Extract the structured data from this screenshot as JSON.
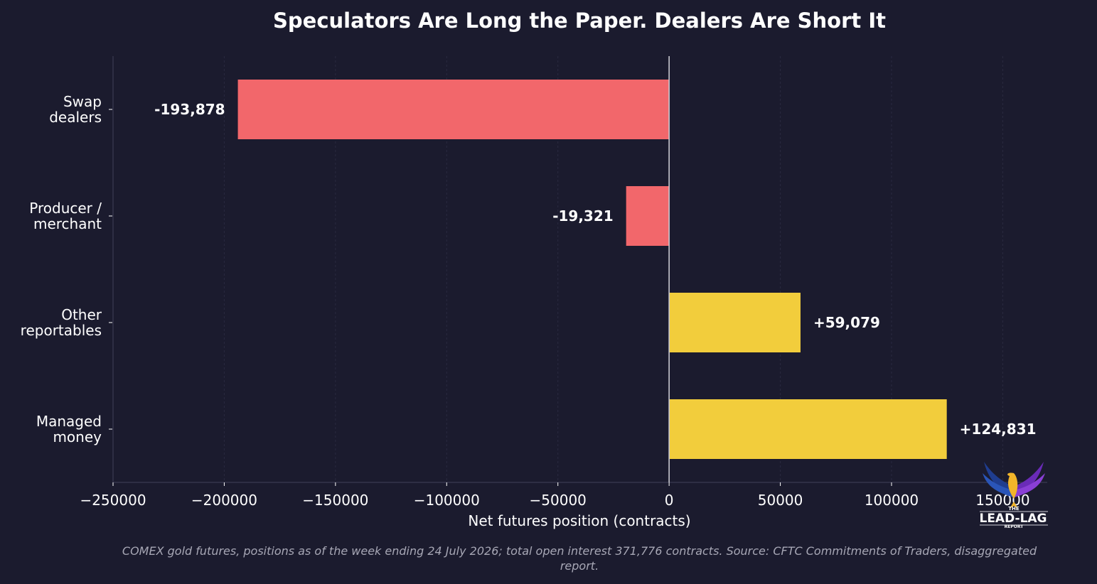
{
  "chart_data": {
    "type": "bar",
    "orientation": "horizontal",
    "title": "Speculators Are Long the Paper. Dealers Are Short It",
    "xlabel": "Net futures position (contracts)",
    "ylabel": "",
    "xlim": [
      -250000,
      170000
    ],
    "xticks": [
      -250000,
      -200000,
      -150000,
      -100000,
      -50000,
      0,
      50000,
      100000,
      150000
    ],
    "xtick_labels": [
      "−250000",
      "−200000",
      "−150000",
      "−100000",
      "−50000",
      "0",
      "50000",
      "100000",
      "150000"
    ],
    "categories": [
      [
        "Swap",
        "dealers"
      ],
      [
        "Producer /",
        "merchant"
      ],
      [
        "Other",
        "reportables"
      ],
      [
        "Managed",
        "money"
      ]
    ],
    "values": [
      -193878,
      -19321,
      59079,
      124831
    ],
    "value_labels": [
      "-193,878",
      "-19,321",
      "+59,079",
      "+124,831"
    ],
    "grid": true,
    "colors": {
      "negative": "#f2676b",
      "positive": "#f2cd3c",
      "background": "#1b1b2e"
    }
  },
  "caption": {
    "line1": "COMEX gold futures, positions as of the week ending 24 July 2026; total open interest 371,776 contracts. Source: CFTC Commitments of Traders, disaggregated",
    "line2": "report."
  },
  "logo": {
    "top": "THE",
    "main": "LEAD-LAG",
    "bottom": "REPORT"
  }
}
